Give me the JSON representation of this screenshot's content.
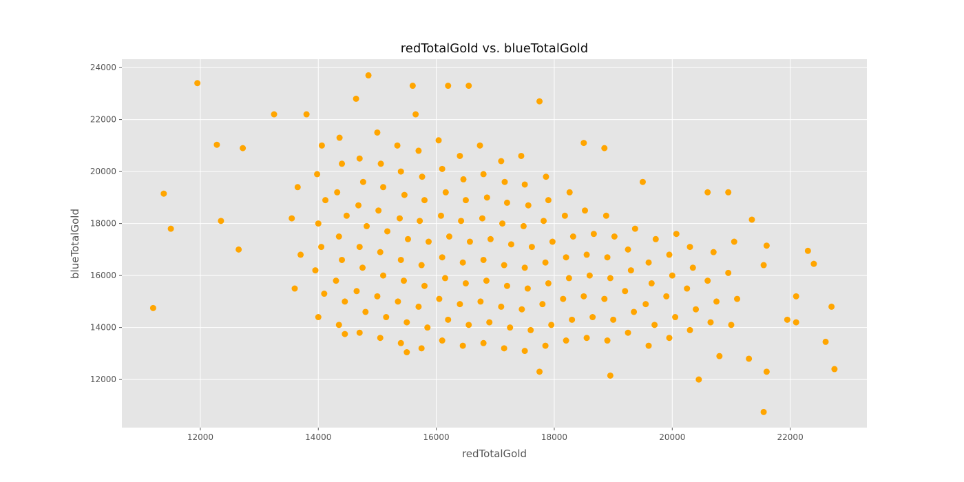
{
  "chart_data": {
    "type": "scatter",
    "title": "redTotalGold vs. blueTotalGold",
    "x_label": "redTotalGold",
    "y_label": "blueTotalGold",
    "color": "#ffa500",
    "grid": true,
    "xlim": [
      10670,
      23300
    ],
    "ylim": [
      10150,
      24320
    ],
    "xticks": [
      12000,
      14000,
      16000,
      18000,
      20000,
      22000
    ],
    "yticks": [
      12000,
      14000,
      16000,
      18000,
      20000,
      22000,
      24000
    ],
    "x": [
      11200,
      11380,
      11500,
      11950,
      12280,
      12350,
      12650,
      12720,
      13250,
      13800,
      14850,
      15600,
      16200,
      16550,
      17750,
      18500,
      18850,
      19500,
      20600,
      20950,
      21350,
      21600,
      22300,
      22400,
      21550,
      22100,
      22700,
      22600,
      22750,
      21600,
      21550,
      20450,
      18950,
      17750,
      21950,
      22100,
      21300,
      20800,
      14450,
      15500,
      13600,
      13700,
      13550,
      13650,
      14000,
      14100,
      13950,
      14050,
      14000,
      14120,
      13980,
      14060,
      14350,
      14450,
      14300,
      14400,
      14350,
      14480,
      14320,
      14400,
      14360,
      14700,
      14800,
      14650,
      14750,
      14700,
      14820,
      14680,
      14760,
      14700,
      14640,
      15050,
      15150,
      15000,
      15100,
      15050,
      15170,
      15020,
      15100,
      15060,
      15000,
      15400,
      15500,
      15350,
      15450,
      15400,
      15520,
      15380,
      15460,
      15400,
      15340,
      15750,
      15850,
      15700,
      15800,
      15750,
      15870,
      15720,
      15800,
      15760,
      15700,
      15650,
      16100,
      16200,
      16050,
      16150,
      16100,
      16220,
      16080,
      16160,
      16100,
      16040,
      16450,
      16550,
      16400,
      16500,
      16450,
      16570,
      16420,
      16500,
      16460,
      16400,
      16800,
      16900,
      16750,
      16850,
      16800,
      16920,
      16780,
      16860,
      16800,
      16740,
      17150,
      17250,
      17100,
      17200,
      17150,
      17270,
      17120,
      17200,
      17160,
      17100,
      17500,
      17600,
      17450,
      17550,
      17500,
      17620,
      17480,
      17560,
      17500,
      17440,
      17850,
      17950,
      17800,
      17900,
      17850,
      17970,
      17820,
      17900,
      17860,
      18200,
      18300,
      18150,
      18250,
      18200,
      18320,
      18180,
      18260,
      18550,
      18650,
      18500,
      18600,
      18550,
      18670,
      18520,
      18900,
      19000,
      18850,
      18950,
      18900,
      19020,
      18880,
      19250,
      19350,
      19200,
      19300,
      19250,
      19370,
      19600,
      19700,
      19550,
      19650,
      19600,
      19720,
      19950,
      20050,
      19900,
      20000,
      19950,
      20070,
      20300,
      20400,
      20250,
      20350,
      20300,
      20650,
      20750,
      20600,
      20700,
      21000,
      21100,
      20950,
      21050
    ],
    "values": [
      14750,
      19150,
      17800,
      23400,
      21030,
      18100,
      17000,
      20900,
      22200,
      22200,
      23700,
      23300,
      23300,
      23300,
      22700,
      21100,
      20900,
      19600,
      19200,
      19200,
      18150,
      17150,
      16950,
      16450,
      16400,
      15200,
      14800,
      13450,
      12400,
      12300,
      10750,
      12000,
      12150,
      12300,
      14300,
      14200,
      12800,
      12900,
      13750,
      13050,
      15500,
      16800,
      18200,
      19400,
      14400,
      15300,
      16200,
      17100,
      18000,
      18900,
      19900,
      21000,
      14100,
      15000,
      15800,
      16600,
      17500,
      18300,
      19200,
      20300,
      21300,
      13800,
      14600,
      15400,
      16300,
      17100,
      17900,
      18700,
      19600,
      20500,
      22800,
      13600,
      14400,
      15200,
      16000,
      16900,
      17700,
      18500,
      19400,
      20300,
      21500,
      13400,
      14200,
      15000,
      15800,
      16600,
      17400,
      18200,
      19100,
      20000,
      21000,
      13200,
      14000,
      14800,
      15600,
      16400,
      17300,
      18100,
      18900,
      19800,
      20800,
      22200,
      13500,
      14300,
      15100,
      15900,
      16700,
      17500,
      18300,
      19200,
      20100,
      21200,
      13300,
      14100,
      14900,
      15700,
      16500,
      17300,
      18100,
      18900,
      19700,
      20600,
      13400,
      14200,
      15000,
      15800,
      16600,
      17400,
      18200,
      19000,
      19900,
      21000,
      13200,
      14000,
      14800,
      15600,
      16400,
      17200,
      18000,
      18800,
      19600,
      20400,
      13100,
      13900,
      14700,
      15500,
      16300,
      17100,
      17900,
      18700,
      19500,
      20600,
      13300,
      14100,
      14900,
      15700,
      16500,
      17300,
      18100,
      18900,
      19800,
      13500,
      14300,
      15100,
      15900,
      16700,
      17500,
      18300,
      19200,
      13600,
      14400,
      15200,
      16000,
      16800,
      17600,
      18500,
      13500,
      14300,
      15100,
      15900,
      16700,
      17500,
      18300,
      13800,
      14600,
      15400,
      16200,
      17000,
      17800,
      13300,
      14100,
      14900,
      15700,
      16500,
      17400,
      13600,
      14400,
      15200,
      16000,
      16800,
      17600,
      13900,
      14700,
      15500,
      16300,
      17100,
      14200,
      15000,
      15800,
      16900,
      14100,
      15100,
      16100,
      17300
    ]
  }
}
